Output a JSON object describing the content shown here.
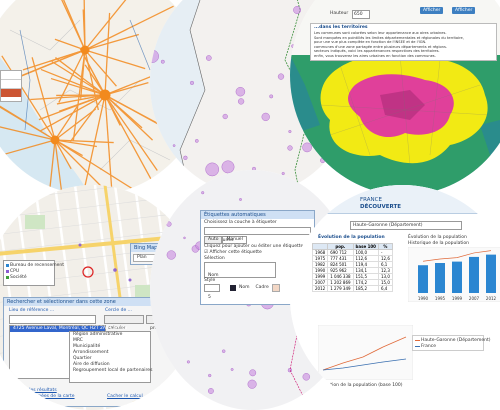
{
  "colors": {
    "flow": "#f28a1e",
    "bubble": "#c98ae0",
    "pink": "#e0409a",
    "yellow": "#f2ea14",
    "green": "#3f9e3a",
    "teal": "#1f8f8f",
    "bar": "#2b86d1"
  },
  "top_center": {
    "bubble_count": 40
  },
  "top_right": {
    "top_field_value": "650",
    "btn1": "Afficher",
    "btn2": "Afficher",
    "caption": "...dans les territoires",
    "info_lines": [
      "Les communes sont colorées selon leur appartenance aux aires urbaines.",
      "Sont marquées en pointillés les limites départementales et régionales du territoire,",
      "pour une vue plus complète en fonction de l'INSEE et de l'IGN.",
      "communes d'une zone partagée entre plusieurs départements et régions.",
      "secteurs indiqués, voici les appartenances respectives des territoires.",
      "enfin, vous trouverez les aires urbaines en fonction des communes."
    ]
  },
  "bottom_left": {
    "legend": [
      "Bureau de recensement",
      "CPU",
      "Société"
    ],
    "search_panel": {
      "title": "Rechercher et sélectionner dans cette zone",
      "label1": "Lieu de référence ...",
      "label2": "Cercle de ...",
      "input1": "4725 av Laval Montréal",
      "btn_calc": "calculer",
      "btn_propose": "proposer",
      "selected": "4725 Avenue Laval, Montréal, QC H2T 2A9 Canada",
      "options": [
        "Région administrative",
        "MRC",
        "Municipalité",
        "Arrondissement",
        "Quartier",
        "Aire de diffusion",
        "Regroupement local de partenaires"
      ],
      "link1": "Cacher les résultats",
      "link2": "Voir les données de la carte",
      "link3": "Cacher le calcul"
    },
    "bing": {
      "title": "Bing Maps",
      "plan": "Plan"
    }
  },
  "bottom_center": {
    "dialog": {
      "title": "Étiquettes automatiques",
      "choose": "Choisissez la couche à étiqueter",
      "layer": "Communes",
      "tab1": "Auto",
      "tab2": "Manuel",
      "hint": "Cliquez pour ajouter ou éditer une étiquette",
      "check1": "Afficher cette étiquette",
      "field": "Sélection",
      "field_value": "Nom",
      "opt1": "Nom",
      "opt2": "Cadre",
      "style_label": "Style",
      "font_size": "5"
    }
  },
  "bottom_right": {
    "header": {
      "title": "FRANCE",
      "subtitle": "DÉCOUVERTE"
    },
    "region": "Haute-Garonne (Département)",
    "section1": "Évolution de la population",
    "section2": "Évolution de la population",
    "subtitle2": "Historique de la population",
    "table": {
      "cols": [
        "",
        "pop.",
        "base 100",
        "%"
      ],
      "rows": [
        [
          "1968",
          "690 712",
          "100,0",
          "-"
        ],
        [
          "1975",
          "777 431",
          "112,6",
          "12,6"
        ],
        [
          "1982",
          "824 501",
          "119,4",
          "6,1"
        ],
        [
          "1990",
          "925 962",
          "134,1",
          "12,3"
        ],
        [
          "1999",
          "1 046 338",
          "151,5",
          "13,0"
        ],
        [
          "2007",
          "1 202 869",
          "174,2",
          "15,0"
        ],
        [
          "2012",
          "1 279 349",
          "185,2",
          "6,4"
        ]
      ]
    },
    "bar_chart": {
      "type": "bar",
      "categories": [
        "1990",
        "1995",
        "1999",
        "2007",
        "2012"
      ],
      "values": [
        925962,
        1000000,
        1046338,
        1202869,
        1279349
      ]
    },
    "line_legend": [
      "Haute-Garonne (Département)",
      "France"
    ],
    "line_caption": "Évolution de la population (base 100)"
  }
}
